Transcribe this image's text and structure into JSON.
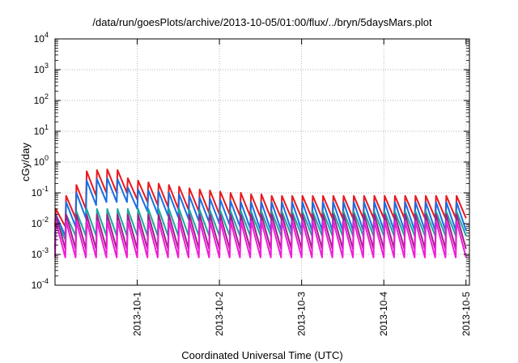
{
  "chart_data": {
    "type": "line",
    "title": "/data/run/goesPlots/archive/2013-10-05/01:00/flux/../bryn/5daysMars.plot",
    "xlabel": "Coordinated Universal Time (UTC)",
    "ylabel": "cGy/day",
    "y_scale": "log",
    "ylim": [
      0.0001,
      10000
    ],
    "y_ticks": [
      {
        "base": "10",
        "exp": "-4"
      },
      {
        "base": "10",
        "exp": "-3"
      },
      {
        "base": "10",
        "exp": "-2"
      },
      {
        "base": "10",
        "exp": "-1"
      },
      {
        "base": "10",
        "exp": "0"
      },
      {
        "base": "10",
        "exp": "1"
      },
      {
        "base": "10",
        "exp": "2"
      },
      {
        "base": "10",
        "exp": "3"
      },
      {
        "base": "10",
        "exp": "4"
      }
    ],
    "xlim": [
      "2013-09-30 00:00",
      "2013-10-05 01:00"
    ],
    "x_ticks": [
      "2013-10-1",
      "2013-10-2",
      "2013-10-3",
      "2013-10-4",
      "2013-10-5"
    ],
    "grid": true,
    "legend": "none",
    "cycle_hours": 3,
    "x_hours": [
      0,
      3,
      6,
      9,
      12,
      15,
      18,
      21,
      24,
      27,
      30,
      33,
      36,
      39,
      42,
      45,
      48,
      51,
      54,
      57,
      60,
      63,
      66,
      69,
      72,
      75,
      78,
      81,
      84,
      87,
      90,
      93,
      96,
      99,
      102,
      105,
      108,
      111,
      114,
      117,
      120
    ],
    "series": [
      {
        "color": "#e8191e",
        "peaks": [
          0.03,
          0.08,
          0.18,
          0.5,
          0.55,
          0.58,
          0.55,
          0.3,
          0.25,
          0.22,
          0.2,
          0.18,
          0.16,
          0.14,
          0.13,
          0.12,
          0.11,
          0.1,
          0.1,
          0.09,
          0.09,
          0.08,
          0.08,
          0.08,
          0.08,
          0.08,
          0.08,
          0.08,
          0.08,
          0.08,
          0.08,
          0.08,
          0.08,
          0.08,
          0.08,
          0.08,
          0.08,
          0.08,
          0.08,
          0.08
        ],
        "troughs": [
          0.008,
          0.015,
          0.03,
          0.08,
          0.1,
          0.1,
          0.1,
          0.06,
          0.05,
          0.04,
          0.035,
          0.03,
          0.028,
          0.025,
          0.022,
          0.02,
          0.02,
          0.018,
          0.017,
          0.016,
          0.015,
          0.015,
          0.015,
          0.015,
          0.015,
          0.015,
          0.015,
          0.015,
          0.015,
          0.015,
          0.015,
          0.015,
          0.015,
          0.015,
          0.015,
          0.015,
          0.015,
          0.015,
          0.015,
          0.015
        ]
      },
      {
        "color": "#1a6fe0",
        "peaks": [
          0.02,
          0.05,
          0.1,
          0.25,
          0.28,
          0.3,
          0.28,
          0.15,
          0.13,
          0.12,
          0.11,
          0.1,
          0.09,
          0.08,
          0.07,
          0.065,
          0.06,
          0.055,
          0.05,
          0.05,
          0.05,
          0.05,
          0.05,
          0.05,
          0.05,
          0.05,
          0.05,
          0.05,
          0.05,
          0.05,
          0.05,
          0.05,
          0.05,
          0.05,
          0.05,
          0.05,
          0.05,
          0.05,
          0.05,
          0.05
        ],
        "troughs": [
          0.004,
          0.008,
          0.015,
          0.04,
          0.05,
          0.05,
          0.05,
          0.03,
          0.025,
          0.02,
          0.018,
          0.016,
          0.014,
          0.012,
          0.011,
          0.01,
          0.009,
          0.008,
          0.007,
          0.006,
          0.006,
          0.006,
          0.006,
          0.006,
          0.006,
          0.006,
          0.006,
          0.006,
          0.006,
          0.006,
          0.006,
          0.006,
          0.006,
          0.006,
          0.006,
          0.006,
          0.006,
          0.006,
          0.006,
          0.006
        ]
      },
      {
        "color": "#1aa8a0",
        "peaks": [
          0.015,
          0.02,
          0.025,
          0.03,
          0.03,
          0.03,
          0.03,
          0.03,
          0.03,
          0.03,
          0.03,
          0.03,
          0.03,
          0.028,
          0.028,
          0.027,
          0.027,
          0.026,
          0.026,
          0.025,
          0.025,
          0.025,
          0.025,
          0.025,
          0.025,
          0.025,
          0.025,
          0.025,
          0.025,
          0.025,
          0.025,
          0.025,
          0.025,
          0.025,
          0.025,
          0.025,
          0.025,
          0.025,
          0.025,
          0.025
        ],
        "troughs": [
          0.003,
          0.004,
          0.004,
          0.004,
          0.004,
          0.004,
          0.004,
          0.004,
          0.004,
          0.004,
          0.004,
          0.004,
          0.004,
          0.004,
          0.004,
          0.004,
          0.004,
          0.004,
          0.004,
          0.004,
          0.004,
          0.004,
          0.004,
          0.004,
          0.004,
          0.004,
          0.004,
          0.004,
          0.004,
          0.004,
          0.004,
          0.004,
          0.004,
          0.004,
          0.004,
          0.004,
          0.004,
          0.004,
          0.004,
          0.004
        ]
      },
      {
        "color": "#a0208a",
        "peaks": [
          0.02,
          0.02,
          0.02,
          0.02,
          0.02,
          0.02,
          0.02,
          0.02,
          0.02,
          0.02,
          0.02,
          0.02,
          0.02,
          0.02,
          0.02,
          0.02,
          0.02,
          0.02,
          0.02,
          0.02,
          0.02,
          0.02,
          0.02,
          0.02,
          0.02,
          0.02,
          0.02,
          0.02,
          0.02,
          0.02,
          0.02,
          0.02,
          0.02,
          0.02,
          0.02,
          0.02,
          0.02,
          0.02,
          0.02,
          0.02
        ],
        "troughs": [
          0.0015,
          0.0015,
          0.0015,
          0.0015,
          0.0015,
          0.0015,
          0.0015,
          0.0015,
          0.0015,
          0.0015,
          0.0015,
          0.0015,
          0.0015,
          0.0015,
          0.0015,
          0.0015,
          0.0015,
          0.0015,
          0.0015,
          0.0015,
          0.0015,
          0.0015,
          0.0015,
          0.0015,
          0.0015,
          0.0015,
          0.0015,
          0.0015,
          0.0015,
          0.0015,
          0.0015,
          0.0015,
          0.0015,
          0.0015,
          0.0015,
          0.0015,
          0.0015,
          0.0015,
          0.0015,
          0.0015
        ]
      },
      {
        "color": "#f01cd8",
        "peaks": [
          0.012,
          0.012,
          0.012,
          0.012,
          0.012,
          0.012,
          0.012,
          0.012,
          0.012,
          0.012,
          0.012,
          0.012,
          0.012,
          0.012,
          0.012,
          0.012,
          0.012,
          0.012,
          0.012,
          0.012,
          0.012,
          0.012,
          0.012,
          0.012,
          0.012,
          0.012,
          0.012,
          0.012,
          0.012,
          0.012,
          0.012,
          0.012,
          0.012,
          0.012,
          0.012,
          0.012,
          0.012,
          0.012,
          0.012,
          0.012
        ],
        "troughs": [
          0.0008,
          0.0008,
          0.0008,
          0.0008,
          0.0008,
          0.0008,
          0.0008,
          0.0008,
          0.0008,
          0.0008,
          0.0008,
          0.0008,
          0.0008,
          0.0008,
          0.0008,
          0.0008,
          0.0008,
          0.0008,
          0.0008,
          0.0008,
          0.0008,
          0.0008,
          0.0008,
          0.0008,
          0.0008,
          0.0008,
          0.0008,
          0.0008,
          0.0008,
          0.0008,
          0.0008,
          0.0008,
          0.0008,
          0.0008,
          0.0008,
          0.0008,
          0.0008,
          0.0008,
          0.0008,
          0.0008
        ]
      }
    ]
  }
}
